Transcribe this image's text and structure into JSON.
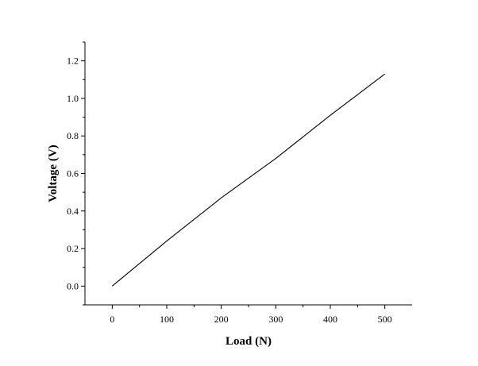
{
  "chart_data": {
    "type": "line",
    "title": "",
    "xlabel": "Load (N)",
    "ylabel": "Voltage (V)",
    "xlim": [
      -50,
      550
    ],
    "ylim": [
      -0.1,
      1.3
    ],
    "x_ticks": [
      0,
      100,
      200,
      300,
      400,
      500
    ],
    "x_tick_labels": [
      "0",
      "100",
      "200",
      "300",
      "400",
      "500"
    ],
    "y_ticks": [
      0.0,
      0.2,
      0.4,
      0.6,
      0.8,
      1.0,
      1.2
    ],
    "y_tick_labels": [
      "0.0",
      "0.2",
      "0.4",
      "0.6",
      "0.8",
      "1.0",
      "1.2"
    ],
    "x_minor_ticks": [
      50,
      150,
      250,
      350,
      450
    ],
    "y_minor_ticks": [
      -0.1,
      0.1,
      0.3,
      0.5,
      0.7,
      0.9,
      1.1,
      1.3
    ],
    "grid": false,
    "legend": "none",
    "series": [
      {
        "color": "#000000",
        "x": [
          0,
          100,
          200,
          300,
          400,
          500
        ],
        "y": [
          0.0,
          0.24,
          0.47,
          0.68,
          0.91,
          1.13
        ]
      }
    ]
  }
}
